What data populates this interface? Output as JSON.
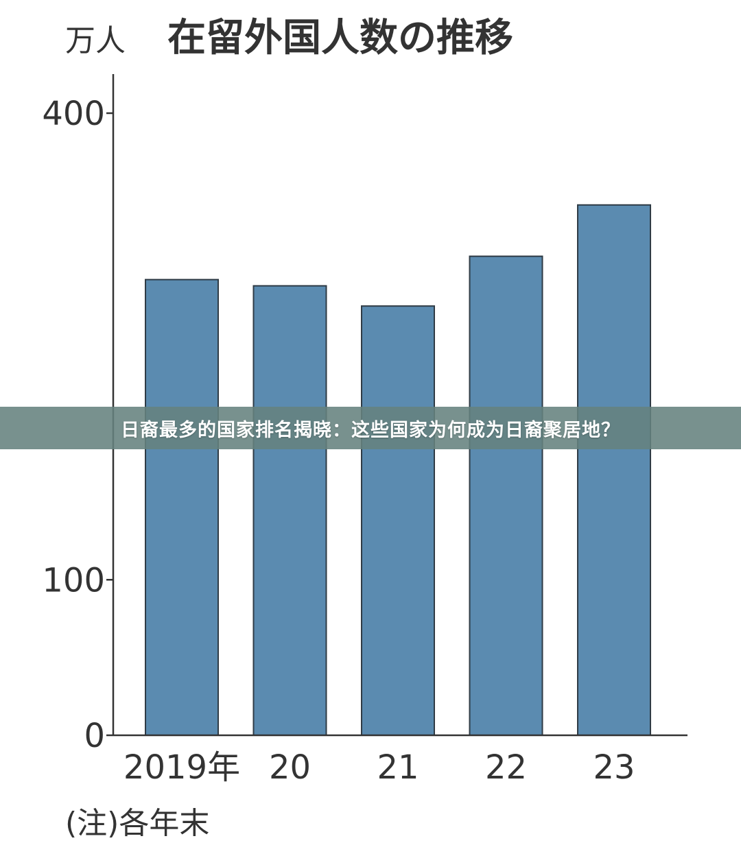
{
  "chart_data": {
    "type": "bar",
    "title": "在留外国人数の推移",
    "unit_label": "万人",
    "categories": [
      "2019年",
      "20",
      "21",
      "22",
      "23"
    ],
    "values": [
      293,
      289,
      276,
      308,
      341
    ],
    "yticks": [
      0,
      100,
      400
    ],
    "ylim": [
      0,
      420
    ],
    "grid": false,
    "legend": "none",
    "note": "(注)各年末",
    "bar_color": "#5b8bb0",
    "bar_edge_color": "#2f3b45"
  },
  "banner": {
    "text": "日裔最多的国家排名揭晓：这些国家为何成为日裔聚居地？"
  }
}
